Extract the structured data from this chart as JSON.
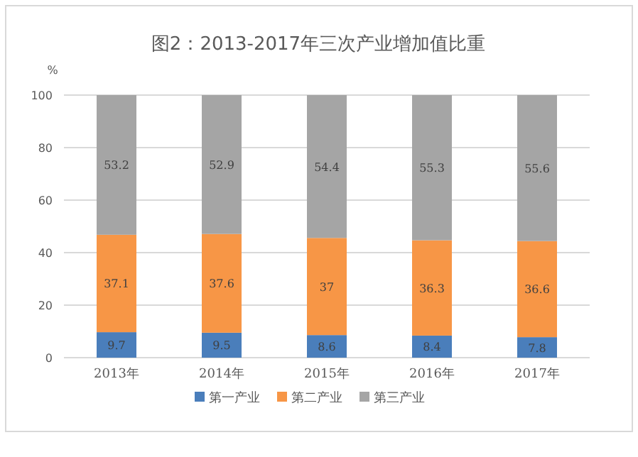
{
  "chart_data": {
    "type": "bar",
    "title": "图2：2013-2017年三次产业增加值比重",
    "ylabel": "%",
    "categories": [
      "2013年",
      "2014年",
      "2015年",
      "2016年",
      "2017年"
    ],
    "series": [
      {
        "name": "第一产业",
        "color": "#4a7ebb",
        "values": [
          9.7,
          9.5,
          8.6,
          8.4,
          7.8
        ]
      },
      {
        "name": "第二产业",
        "color": "#f79646",
        "values": [
          37.1,
          37.6,
          37,
          36.3,
          36.6
        ]
      },
      {
        "name": "第三产业",
        "color": "#a5a5a5",
        "values": [
          53.2,
          52.9,
          54.4,
          55.3,
          55.6
        ]
      }
    ],
    "stacked": true,
    "data_labels": true,
    "ylim": [
      0,
      100
    ],
    "yticks": [
      0,
      20,
      40,
      60,
      80,
      100
    ],
    "grid": "y",
    "legend": "bottom"
  }
}
